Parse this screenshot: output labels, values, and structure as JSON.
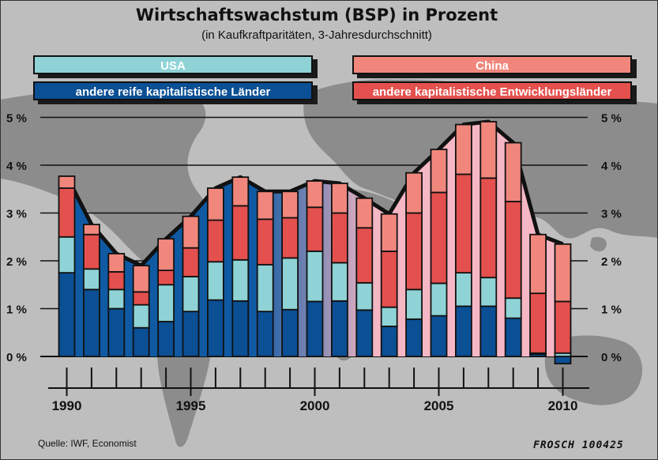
{
  "title": "Wirtschaftswachstum (BSP) in Prozent",
  "subtitle": "(in Kaufkraftparitäten, 3-Jahresdurchschnitt)",
  "legend": {
    "usa": "USA",
    "china": "China",
    "mature": "andere reife kapitalistische Länder",
    "developing": "andere kapitalistische Entwicklungsländer"
  },
  "colors": {
    "mature": "#0b4f94",
    "usa": "#8fd3d6",
    "developing": "#e3504d",
    "china": "#f1877c",
    "envelope_left": "#0f5aa3",
    "envelope_right": "#f6b7c4",
    "background": "#bebebe",
    "map": "#8c8c8c"
  },
  "source": "Quelle: IWF, Economist",
  "signature": "FROSCH 100425",
  "chart_data": {
    "type": "bar",
    "stacked": true,
    "title": "Wirtschaftswachstum (BSP) in Prozent",
    "subtitle": "(in Kaufkraftparitäten, 3-Jahresdurchschnitt)",
    "xlabel": "",
    "ylabel": "",
    "ylim": [
      -0.2,
      5
    ],
    "yticks": [
      0,
      1,
      2,
      3,
      4,
      5
    ],
    "ytick_labels": [
      "0 %",
      "1 %",
      "2 %",
      "3 %",
      "4 %",
      "5 %"
    ],
    "xtick_labels": [
      {
        "year": 1990,
        "label": "1990"
      },
      {
        "year": 1995,
        "label": "1995"
      },
      {
        "year": 2000,
        "label": "2000"
      },
      {
        "year": 2005,
        "label": "2005"
      },
      {
        "year": 2010,
        "label": "2010"
      }
    ],
    "grid": true,
    "categories": [
      1990,
      1991,
      1992,
      1993,
      1994,
      1995,
      1996,
      1997,
      1998,
      1999,
      2000,
      2001,
      2002,
      2003,
      2004,
      2005,
      2006,
      2007,
      2008,
      2009,
      2010
    ],
    "series": [
      {
        "name": "andere reife kapitalistische Länder",
        "key": "mature",
        "values": [
          1.75,
          1.4,
          1.0,
          0.6,
          0.73,
          0.94,
          1.18,
          1.16,
          0.94,
          0.98,
          1.15,
          1.16,
          0.97,
          0.63,
          0.78,
          0.85,
          1.05,
          1.05,
          0.8,
          0.05,
          -0.15
        ]
      },
      {
        "name": "USA",
        "key": "usa",
        "values": [
          0.75,
          0.43,
          0.4,
          0.48,
          0.77,
          0.73,
          0.8,
          0.86,
          0.98,
          1.08,
          1.05,
          0.8,
          0.57,
          0.4,
          0.62,
          0.68,
          0.7,
          0.6,
          0.42,
          0.02,
          0.07
        ]
      },
      {
        "name": "andere kapitalistische Entwicklungsländer",
        "key": "developing",
        "values": [
          1.02,
          0.72,
          0.37,
          0.27,
          0.3,
          0.6,
          0.87,
          1.13,
          0.95,
          0.84,
          0.92,
          1.04,
          1.15,
          1.17,
          1.6,
          1.9,
          2.06,
          2.08,
          2.02,
          1.25,
          1.08
        ]
      },
      {
        "name": "China",
        "key": "china",
        "values": [
          0.25,
          0.21,
          0.38,
          0.55,
          0.66,
          0.66,
          0.67,
          0.6,
          0.58,
          0.55,
          0.55,
          0.62,
          0.62,
          0.78,
          0.84,
          0.9,
          1.04,
          1.18,
          1.23,
          1.23,
          1.2
        ]
      }
    ]
  }
}
